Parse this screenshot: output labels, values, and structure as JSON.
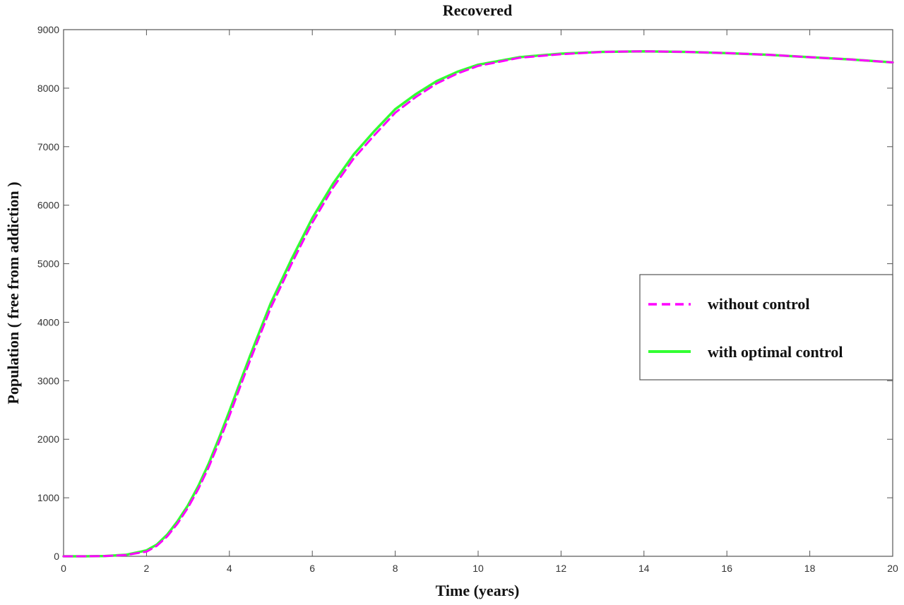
{
  "chart_data": {
    "type": "line",
    "title": "Recovered",
    "xlabel": "Time (years)",
    "ylabel": "Population ( free from addiction )",
    "xlim": [
      0,
      20
    ],
    "ylim": [
      0,
      9000
    ],
    "xticks": [
      0,
      2,
      4,
      6,
      8,
      10,
      12,
      14,
      16,
      18,
      20
    ],
    "yticks": [
      0,
      1000,
      2000,
      3000,
      4000,
      5000,
      6000,
      7000,
      8000,
      9000
    ],
    "grid": false,
    "legend_position": "right",
    "series": [
      {
        "name": "without control",
        "color": "#ff00ff",
        "style": "dashed",
        "x": [
          0,
          0.5,
          1,
          1.5,
          2,
          2.25,
          2.5,
          2.75,
          3,
          3.25,
          3.5,
          3.75,
          4,
          4.25,
          4.5,
          4.75,
          5,
          5.5,
          6,
          6.5,
          7,
          7.5,
          8,
          8.5,
          9,
          9.5,
          10,
          11,
          12,
          13,
          14,
          15,
          16,
          17,
          18,
          19,
          20
        ],
        "y": [
          0,
          0,
          5,
          20,
          80,
          180,
          340,
          560,
          830,
          1150,
          1520,
          1950,
          2400,
          2880,
          3350,
          3800,
          4250,
          5000,
          5700,
          6300,
          6800,
          7200,
          7580,
          7850,
          8080,
          8250,
          8380,
          8520,
          8580,
          8620,
          8630,
          8620,
          8600,
          8570,
          8530,
          8490,
          8440
        ]
      },
      {
        "name": "with optimal control",
        "color": "#33ff33",
        "style": "solid",
        "x": [
          0,
          0.5,
          1,
          1.5,
          2,
          2.25,
          2.5,
          2.75,
          3,
          3.25,
          3.5,
          3.75,
          4,
          4.25,
          4.5,
          4.75,
          5,
          5.5,
          6,
          6.5,
          7,
          7.5,
          8,
          8.5,
          9,
          9.5,
          10,
          11,
          12,
          13,
          14,
          15,
          16,
          17,
          18,
          19,
          20
        ],
        "y": [
          0,
          0,
          5,
          25,
          100,
          200,
          370,
          600,
          870,
          1200,
          1580,
          2020,
          2480,
          2960,
          3430,
          3880,
          4330,
          5080,
          5780,
          6370,
          6870,
          7270,
          7640,
          7900,
          8120,
          8280,
          8400,
          8530,
          8590,
          8620,
          8630,
          8620,
          8600,
          8570,
          8530,
          8490,
          8440
        ]
      }
    ]
  }
}
